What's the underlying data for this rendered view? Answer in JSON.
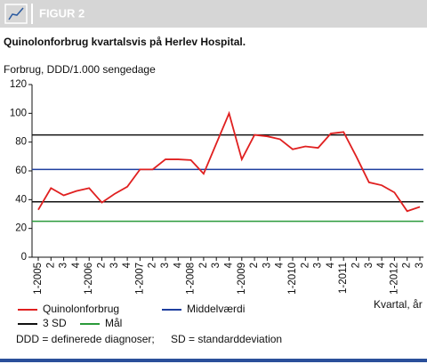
{
  "header": {
    "label": "FIGUR 2"
  },
  "chart_data": {
    "type": "line",
    "title": "Quinolonforbrug kvartalsvis på Herlev Hospital.",
    "y_label": "Forbrug, DDD/1.000 sengedage",
    "x_label": "Kvartal, år",
    "categories": [
      "1-2005",
      "2",
      "3",
      "4",
      "1-2006",
      "2",
      "3",
      "4",
      "1-2007",
      "2",
      "3",
      "4",
      "1-2008",
      "2",
      "3",
      "4",
      "1-2009",
      "2",
      "3",
      "4",
      "1-2010",
      "2",
      "3",
      "4",
      "1-2011",
      "2",
      "3",
      "4",
      "1-2012",
      "2",
      "3"
    ],
    "series": [
      {
        "name": "Quinolonforbrug",
        "color": "#e02020",
        "values": [
          33,
          48,
          43,
          46,
          48,
          38,
          44,
          49,
          61,
          61,
          68,
          68,
          67.5,
          58,
          79,
          100,
          68,
          85,
          84,
          82,
          75,
          77,
          76,
          86,
          87,
          70,
          52,
          50,
          45,
          32,
          35
        ]
      }
    ],
    "reference_lines": [
      {
        "name": "Middelværdi",
        "color": "#1f3f9f",
        "values": [
          61
        ]
      },
      {
        "name": "3 SD",
        "color": "#111111",
        "values": [
          85,
          38.5
        ]
      },
      {
        "name": "Mål",
        "color": "#2a9a3a",
        "values": [
          25
        ]
      }
    ],
    "ylim": [
      0,
      120
    ],
    "yticks": [
      0,
      20,
      40,
      60,
      80,
      100,
      120
    ],
    "notes": [
      "DDD = definerede diagnoser;",
      "SD = standarddeviation"
    ]
  }
}
